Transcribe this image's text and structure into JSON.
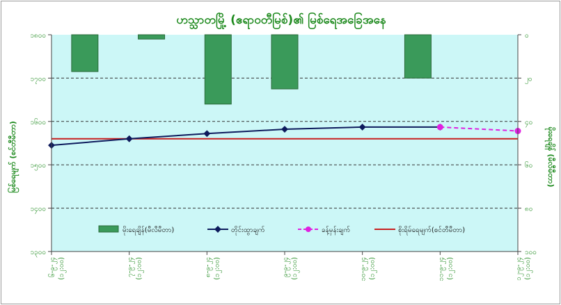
{
  "chart_data": {
    "type": "bar+line",
    "title": "ဟသ္သာတမြို့ (ဧရာဝတီမြစ်)၏ မြစ်ရေအခြေအနေ",
    "categories": [
      "၆-၉-၂၄\n(၁၂:၀၀)",
      "၇-၉-၂၄\n(၁၂:၀၀)",
      "၈-၉-၂၄\n(၁၂:၀၀)",
      "၉-၉-၂၄\n(၁၂:၀၀)",
      "၁၀-၉-၂၄\n(၁၂:၀၀)",
      "၁၁-၉-၂၄\n(၁၂:၀၀)",
      "၁၂-၉-၂၄\n(၁၂:၀၀)"
    ],
    "y_left": {
      "label": "မြစ်ရေမျက် (စင်တီမီတာ)",
      "min": 1300,
      "max": 1800,
      "ticks": [
        1300,
        1400,
        1500,
        1600,
        1700,
        1800
      ],
      "tick_labels": [
        "၁၃၀၀",
        "၁၄၀၀",
        "၁၅၀၀",
        "၁၆၀၀",
        "၁၇၀၀",
        "၁၈၀၀"
      ]
    },
    "y_right": {
      "label": "မိုးရေချိန် (မီလီမီတာ)",
      "min": 0,
      "max": 100,
      "inverted": true,
      "ticks": [
        0,
        20,
        40,
        60,
        80,
        100
      ],
      "tick_labels": [
        "၀",
        "၂၀",
        "၄၀",
        "၆၀",
        "၈၀",
        "၁၀၀"
      ]
    },
    "series": [
      {
        "name": "မိုးရေချိန်(မီလီမီတာ)",
        "kind": "bar",
        "axis": "right",
        "color": "#3a9a5a",
        "values": [
          17,
          2,
          32,
          25,
          null,
          20,
          null
        ]
      },
      {
        "name": "တိုင်းထွာချက်",
        "kind": "line",
        "axis": "left",
        "color": "#0d1a5c",
        "values": [
          1545,
          1560,
          1572,
          1582,
          1587,
          1587,
          null
        ]
      },
      {
        "name": "ခန့်မှန်းချက်",
        "kind": "dashed-line",
        "axis": "left",
        "color": "#e020e0",
        "values": [
          null,
          null,
          null,
          null,
          null,
          1587,
          1578
        ]
      },
      {
        "name": "စိုးရိမ်ရေမျက်(စင်တီမီတာ)",
        "kind": "hline",
        "axis": "left",
        "color": "#c81e1e",
        "value": 1560
      }
    ],
    "grid": "horizontal-dashed",
    "plot_background": "#ccf7f7",
    "legend_position": "bottom-inside"
  }
}
